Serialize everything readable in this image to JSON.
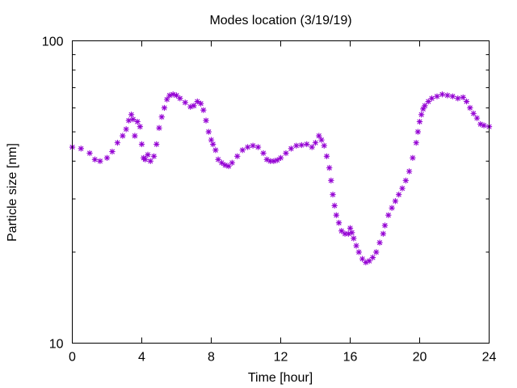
{
  "chart_data": {
    "type": "scatter",
    "title": "Modes location (3/19/19)",
    "xlabel": "Time [hour]",
    "ylabel": "Particle size [nm]",
    "xlim": [
      0,
      24
    ],
    "ylim": [
      10,
      100
    ],
    "yscale": "log",
    "grid": false,
    "marker": "asterisk",
    "x_ticks": [
      0,
      4,
      8,
      12,
      16,
      20,
      24
    ],
    "x_tick_labels": [
      "0",
      "4",
      "8",
      "12",
      "16",
      "20",
      "24"
    ],
    "y_ticks": [
      10,
      100
    ],
    "y_tick_labels": [
      "10",
      "100"
    ],
    "series": [
      {
        "color": "#9400d3",
        "x": [
          0.0,
          0.5,
          1.0,
          1.3,
          1.6,
          2.0,
          2.3,
          2.6,
          2.9,
          3.1,
          3.25,
          3.4,
          3.5,
          3.6,
          3.75,
          3.9,
          4.0,
          4.1,
          4.2,
          4.35,
          4.5,
          4.7,
          4.85,
          5.0,
          5.15,
          5.3,
          5.45,
          5.6,
          5.8,
          6.0,
          6.2,
          6.5,
          6.8,
          7.0,
          7.2,
          7.4,
          7.55,
          7.7,
          7.85,
          8.0,
          8.1,
          8.25,
          8.4,
          8.6,
          8.8,
          9.0,
          9.2,
          9.5,
          9.8,
          10.1,
          10.4,
          10.7,
          11.0,
          11.2,
          11.4,
          11.6,
          11.8,
          12.0,
          12.3,
          12.6,
          12.9,
          13.2,
          13.5,
          13.8,
          14.0,
          14.2,
          14.35,
          14.5,
          14.65,
          14.8,
          14.9,
          15.0,
          15.1,
          15.2,
          15.35,
          15.5,
          15.7,
          15.9,
          16.0,
          16.1,
          16.2,
          16.35,
          16.5,
          16.7,
          16.9,
          17.1,
          17.3,
          17.5,
          17.7,
          17.9,
          18.0,
          18.2,
          18.4,
          18.6,
          18.8,
          19.0,
          19.2,
          19.4,
          19.6,
          19.8,
          19.9,
          20.0,
          20.1,
          20.2,
          20.3,
          20.5,
          20.7,
          21.0,
          21.3,
          21.6,
          21.9,
          22.2,
          22.5,
          22.7,
          22.9,
          23.1,
          23.3,
          23.5,
          23.7,
          24.0
        ],
        "y": [
          44.5,
          44.0,
          42.5,
          40.5,
          40.0,
          41.0,
          43.0,
          46.0,
          48.5,
          51.0,
          54.5,
          57.0,
          55.0,
          48.5,
          54.0,
          52.0,
          45.5,
          41.0,
          40.5,
          42.0,
          40.0,
          41.5,
          45.5,
          51.5,
          56.0,
          60.0,
          64.0,
          66.0,
          66.5,
          66.0,
          64.5,
          62.5,
          60.5,
          61.0,
          63.0,
          62.0,
          59.0,
          54.5,
          50.0,
          47.0,
          45.5,
          43.5,
          40.5,
          39.5,
          38.8,
          38.5,
          39.5,
          41.5,
          43.5,
          44.5,
          45.0,
          44.5,
          42.5,
          40.5,
          40.0,
          40.0,
          40.3,
          41.0,
          42.5,
          44.0,
          45.0,
          45.2,
          45.5,
          44.5,
          46.0,
          48.5,
          47.0,
          45.0,
          41.5,
          38.0,
          34.5,
          31.0,
          28.5,
          26.5,
          25.0,
          23.5,
          23.0,
          23.0,
          24.0,
          23.2,
          22.2,
          21.0,
          20.0,
          19.0,
          18.5,
          18.7,
          19.2,
          20.0,
          21.5,
          23.0,
          24.5,
          26.5,
          28.0,
          29.5,
          31.0,
          32.5,
          34.5,
          37.0,
          41.0,
          46.0,
          50.0,
          54.0,
          57.0,
          59.5,
          61.0,
          63.0,
          64.5,
          65.5,
          66.5,
          66.0,
          65.5,
          64.5,
          65.0,
          63.0,
          60.0,
          57.5,
          55.5,
          53.0,
          52.5,
          52.0
        ]
      }
    ]
  }
}
